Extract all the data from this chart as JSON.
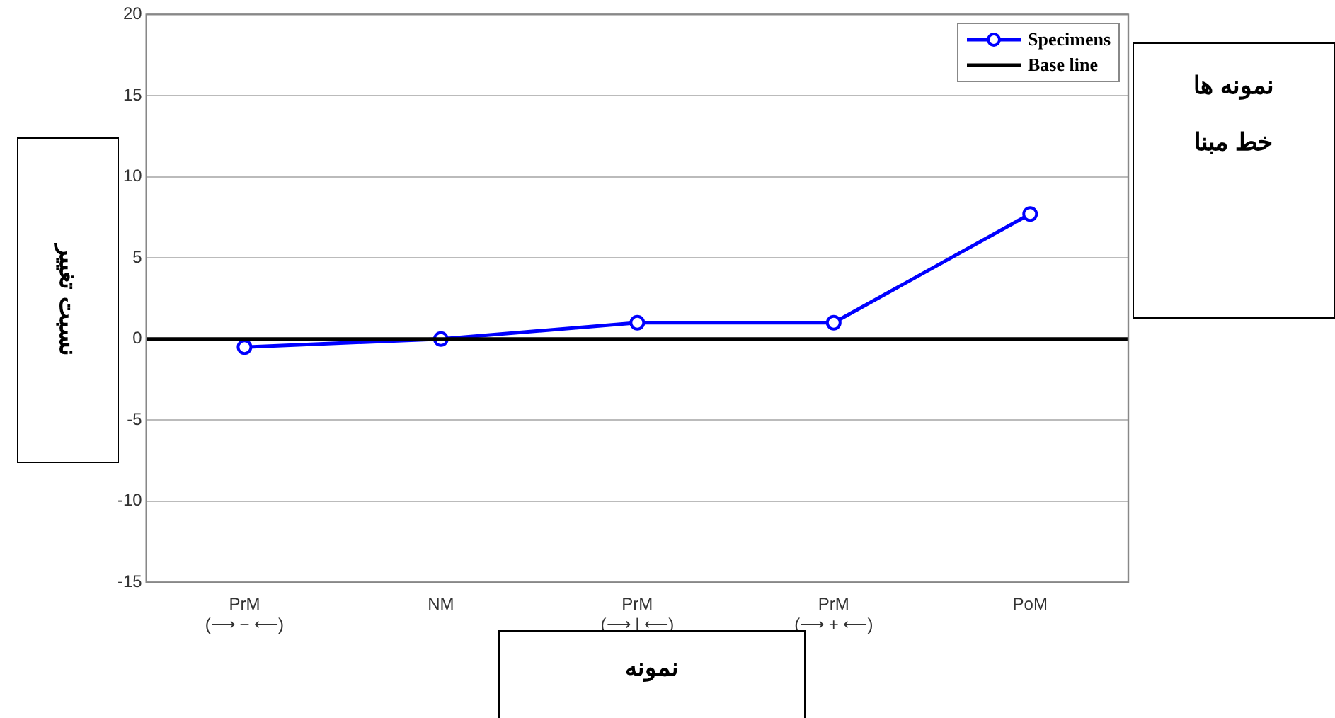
{
  "chart_data": {
    "type": "line",
    "ylabel": "نسبت تغییر",
    "xlabel": "نمونه",
    "categories": [
      "PrM\n(⟶ − ⟵)",
      "NM",
      "PrM\n(⟶ | ⟵)",
      "PrM\n(⟶ + ⟵)",
      "PoM"
    ],
    "series": [
      {
        "name": "Specimens",
        "color": "#0000ff",
        "values": [
          -0.5,
          0,
          1,
          1,
          7.7
        ]
      }
    ],
    "ref_lines": [
      {
        "axis": "y",
        "value": 0,
        "label": "Base line",
        "color": "#000000"
      }
    ],
    "ylim": [
      -15,
      20
    ],
    "yticks": [
      -15,
      -10,
      -5,
      0,
      5,
      10,
      15,
      20
    ],
    "grid": "y",
    "legend": "top right",
    "marker": "circle",
    "line_style": "solid",
    "annotations": [
      "نمونه ها",
      "خط مبنا"
    ]
  }
}
